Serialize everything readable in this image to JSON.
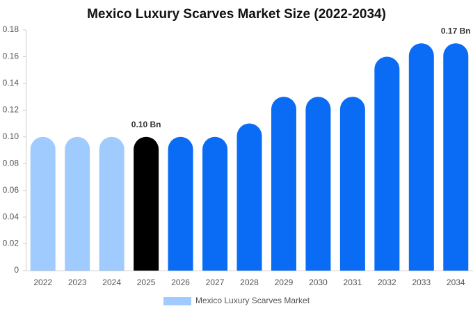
{
  "chart_data": {
    "type": "bar",
    "title": "Mexico Luxury Scarves Market Size (2022-2034)",
    "categories": [
      "2022",
      "2023",
      "2024",
      "2025",
      "2026",
      "2027",
      "2028",
      "2029",
      "2030",
      "2031",
      "2032",
      "2033",
      "2034"
    ],
    "series": [
      {
        "name": "Mexico Luxury Scarves Market",
        "color": "#a0cbff",
        "values": [
          0.1,
          0.1,
          0.1,
          0.1,
          0.1,
          0.1,
          0.11,
          0.13,
          0.13,
          0.13,
          0.16,
          0.17,
          0.17
        ],
        "colors": [
          "#a0cbff",
          "#a0cbff",
          "#a0cbff",
          "#000000",
          "#0a6cf5",
          "#0a6cf5",
          "#0a6cf5",
          "#0a6cf5",
          "#0a6cf5",
          "#0a6cf5",
          "#0a6cf5",
          "#0a6cf5",
          "#0a6cf5"
        ],
        "value_labels": [
          null,
          null,
          null,
          "0.10 Bn",
          null,
          null,
          null,
          null,
          null,
          null,
          null,
          null,
          "0.17 Bn"
        ]
      }
    ],
    "ylim": [
      0,
      0.18
    ],
    "yticks": [
      0,
      0.02,
      0.04,
      0.06,
      0.08,
      {
        "value": 0.1,
        "label": "0.10"
      },
      0.12,
      0.14,
      0.16,
      0.18
    ],
    "grid": false,
    "legend": "bottom"
  }
}
